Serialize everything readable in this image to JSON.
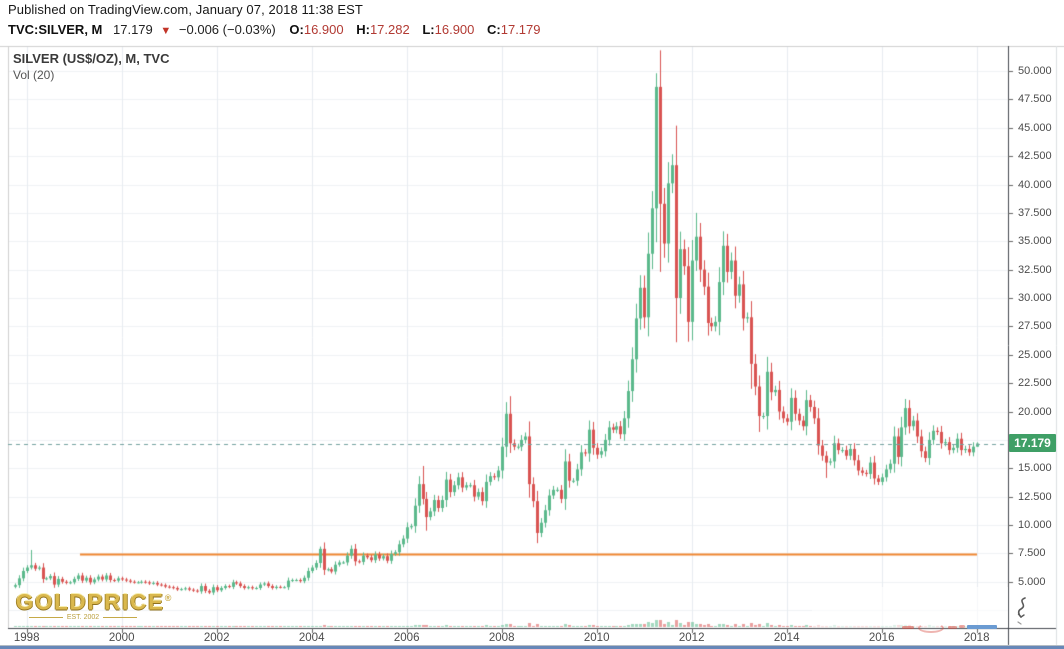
{
  "published_bar": "Published on TradingView.com, January 07, 2018 11:38 EST",
  "quote_bar": {
    "symbol_interval": "TVC:SILVER, M",
    "last": "17.179",
    "arrow": "▼",
    "change": "−0.006 (−0.03%)",
    "o_label": "O:",
    "o_value": "16.900",
    "h_label": "H:",
    "h_value": "17.282",
    "l_label": "L:",
    "l_value": "16.900",
    "c_label": "C:",
    "c_value": "17.179"
  },
  "chart": {
    "title": "SILVER (US$/OZ), M, TVC",
    "indicator_label": "Vol (20)",
    "price_badge": "17.179",
    "y_tick_labels": [
      "50.000",
      "47.500",
      "45.000",
      "42.500",
      "40.000",
      "37.500",
      "35.000",
      "32.500",
      "30.000",
      "27.500",
      "25.000",
      "22.500",
      "20.000",
      "15.000",
      "12.500",
      "10.000",
      "7.500",
      "5.000"
    ],
    "x_tick_labels": [
      "1998",
      "2000",
      "2002",
      "2004",
      "2006",
      "2008",
      "2010",
      "2012",
      "2014",
      "2016",
      "2018"
    ],
    "colors": {
      "up": "#5bb98c",
      "down": "#d95452",
      "badge": "#3f9f66",
      "last_price_line": "#74a2a0",
      "support_line": "#ef8630",
      "grid_v": "#e7ecf1",
      "grid_h": "#f0f2f5",
      "axis_line": "#45494f",
      "value_red": "#b23a33"
    }
  },
  "watermark": {
    "brand": "GOLDPRICE",
    "reg": "®",
    "tagline": "EST. 2002"
  },
  "chart_data": {
    "type": "candlestick",
    "symbol": "SILVER (US$/OZ)",
    "exchange": "TVC",
    "interval": "monthly",
    "start": "1997-10",
    "end": "2018-01",
    "title": "SILVER (US$/OZ), M, TVC",
    "ylabel": "US$/OZ",
    "ylim": [
      0.9,
      52.3
    ],
    "y_ticks": [
      5,
      7.5,
      10,
      12.5,
      15,
      17.5,
      20,
      22.5,
      25,
      27.5,
      30,
      32.5,
      35,
      37.5,
      40,
      42.5,
      45,
      47.5,
      50
    ],
    "x_ticks": [
      1998,
      2000,
      2002,
      2004,
      2006,
      2008,
      2010,
      2012,
      2014,
      2016,
      2018
    ],
    "grid": true,
    "last_price": 17.179,
    "last_bar": {
      "open": 16.9,
      "high": 17.282,
      "low": 16.9,
      "close": 17.179
    },
    "support_line_price": 7.42,
    "volume_indicator": "Vol (20)",
    "closes": [
      4.7,
      5.3,
      5.95,
      6.25,
      6.45,
      6.15,
      6.25,
      5.25,
      5.3,
      5.5,
      4.75,
      5.25,
      5.0,
      4.9,
      4.95,
      5.25,
      5.55,
      5.1,
      5.35,
      4.95,
      5.2,
      5.45,
      5.2,
      5.55,
      5.15,
      5.1,
      5.3,
      5.2,
      5.1,
      5.0,
      4.95,
      4.95,
      5.0,
      4.95,
      4.85,
      4.9,
      4.75,
      4.7,
      4.57,
      4.52,
      4.45,
      4.32,
      4.35,
      4.42,
      4.3,
      4.22,
      4.15,
      4.62,
      4.2,
      4.05,
      4.52,
      4.25,
      4.45,
      4.62,
      4.55,
      4.95,
      4.85,
      4.62,
      4.45,
      4.52,
      4.42,
      4.45,
      4.75,
      4.85,
      4.62,
      4.45,
      4.55,
      4.52,
      4.52,
      5.1,
      5.15,
      5.15,
      5.05,
      5.35,
      5.95,
      6.25,
      6.65,
      7.9,
      6.05,
      6.1,
      5.9,
      6.5,
      6.7,
      6.7,
      7.3,
      7.9,
      6.8,
      6.75,
      7.3,
      7.15,
      6.9,
      7.4,
      7.05,
      7.25,
      6.85,
      7.45,
      7.6,
      8.3,
      8.8,
      9.8,
      9.9,
      11.7,
      13.6,
      12.3,
      10.7,
      11.2,
      12.2,
      11.5,
      12.2,
      14.0,
      12.9,
      13.5,
      14.2,
      13.3,
      13.5,
      13.5,
      12.5,
      12.9,
      12.1,
      13.8,
      14.3,
      14.2,
      14.8,
      16.9,
      19.8,
      17.2,
      16.9,
      16.9,
      17.5,
      17.8,
      13.6,
      12.1,
      9.3,
      10.2,
      11.3,
      12.6,
      13.1,
      13.1,
      12.3,
      15.6,
      13.9,
      13.9,
      14.9,
      16.4,
      16.3,
      18.4,
      16.8,
      16.2,
      16.5,
      17.5,
      18.6,
      18.4,
      18.7,
      18.0,
      19.4,
      21.8,
      24.6,
      28.2,
      30.9,
      28.3,
      33.9,
      37.9,
      48.6,
      38.3,
      34.8,
      40.1,
      41.7,
      30.0,
      34.3,
      32.8,
      27.9,
      33.3,
      35.4,
      32.5,
      31.0,
      27.8,
      27.5,
      27.9,
      31.4,
      34.6,
      32.3,
      33.3,
      30.2,
      31.2,
      28.2,
      28.3,
      24.2,
      22.2,
      19.6,
      19.6,
      23.5,
      21.7,
      21.9,
      20.0,
      19.4,
      19.1,
      21.2,
      19.8,
      19.2,
      18.7,
      21.0,
      20.4,
      19.4,
      17.0,
      16.1,
      15.5,
      15.6,
      17.2,
      16.6,
      16.6,
      16.1,
      16.7,
      15.7,
      14.8,
      14.6,
      14.5,
      15.5,
      14.1,
      13.8,
      14.2,
      14.9,
      15.4,
      17.8,
      16.0,
      18.6,
      20.3,
      18.7,
      19.2,
      17.8,
      16.5,
      15.9,
      17.5,
      18.3,
      18.2,
      17.2,
      17.3,
      16.6,
      16.8,
      17.6,
      16.6,
      16.7,
      16.4,
      16.9,
      17.179
    ],
    "wick_overrides": {
      "1998-02": {
        "h": 7.8
      },
      "2004-03": {
        "h": 8.1
      },
      "2004-04": {
        "h": 8.46,
        "l": 5.6
      },
      "2006-05": {
        "h": 15.2
      },
      "2006-06": {
        "l": 9.5
      },
      "2008-03": {
        "h": 21.35
      },
      "2008-10": {
        "l": 8.4
      },
      "2011-04": {
        "h": 49.8
      },
      "2011-05": {
        "l": 32.3
      },
      "2011-09": {
        "l": 26.1
      },
      "2011-12": {
        "l": 26.15
      },
      "2012-02": {
        "h": 37.5
      },
      "2013-04": {
        "l": 22.0
      },
      "2013-06": {
        "l": 18.2
      },
      "2014-11": {
        "l": 14.15
      },
      "2016-07": {
        "h": 21.1
      },
      "2018-01": {
        "o": 16.9,
        "h": 17.282,
        "l": 16.9,
        "c": 17.179
      }
    }
  }
}
